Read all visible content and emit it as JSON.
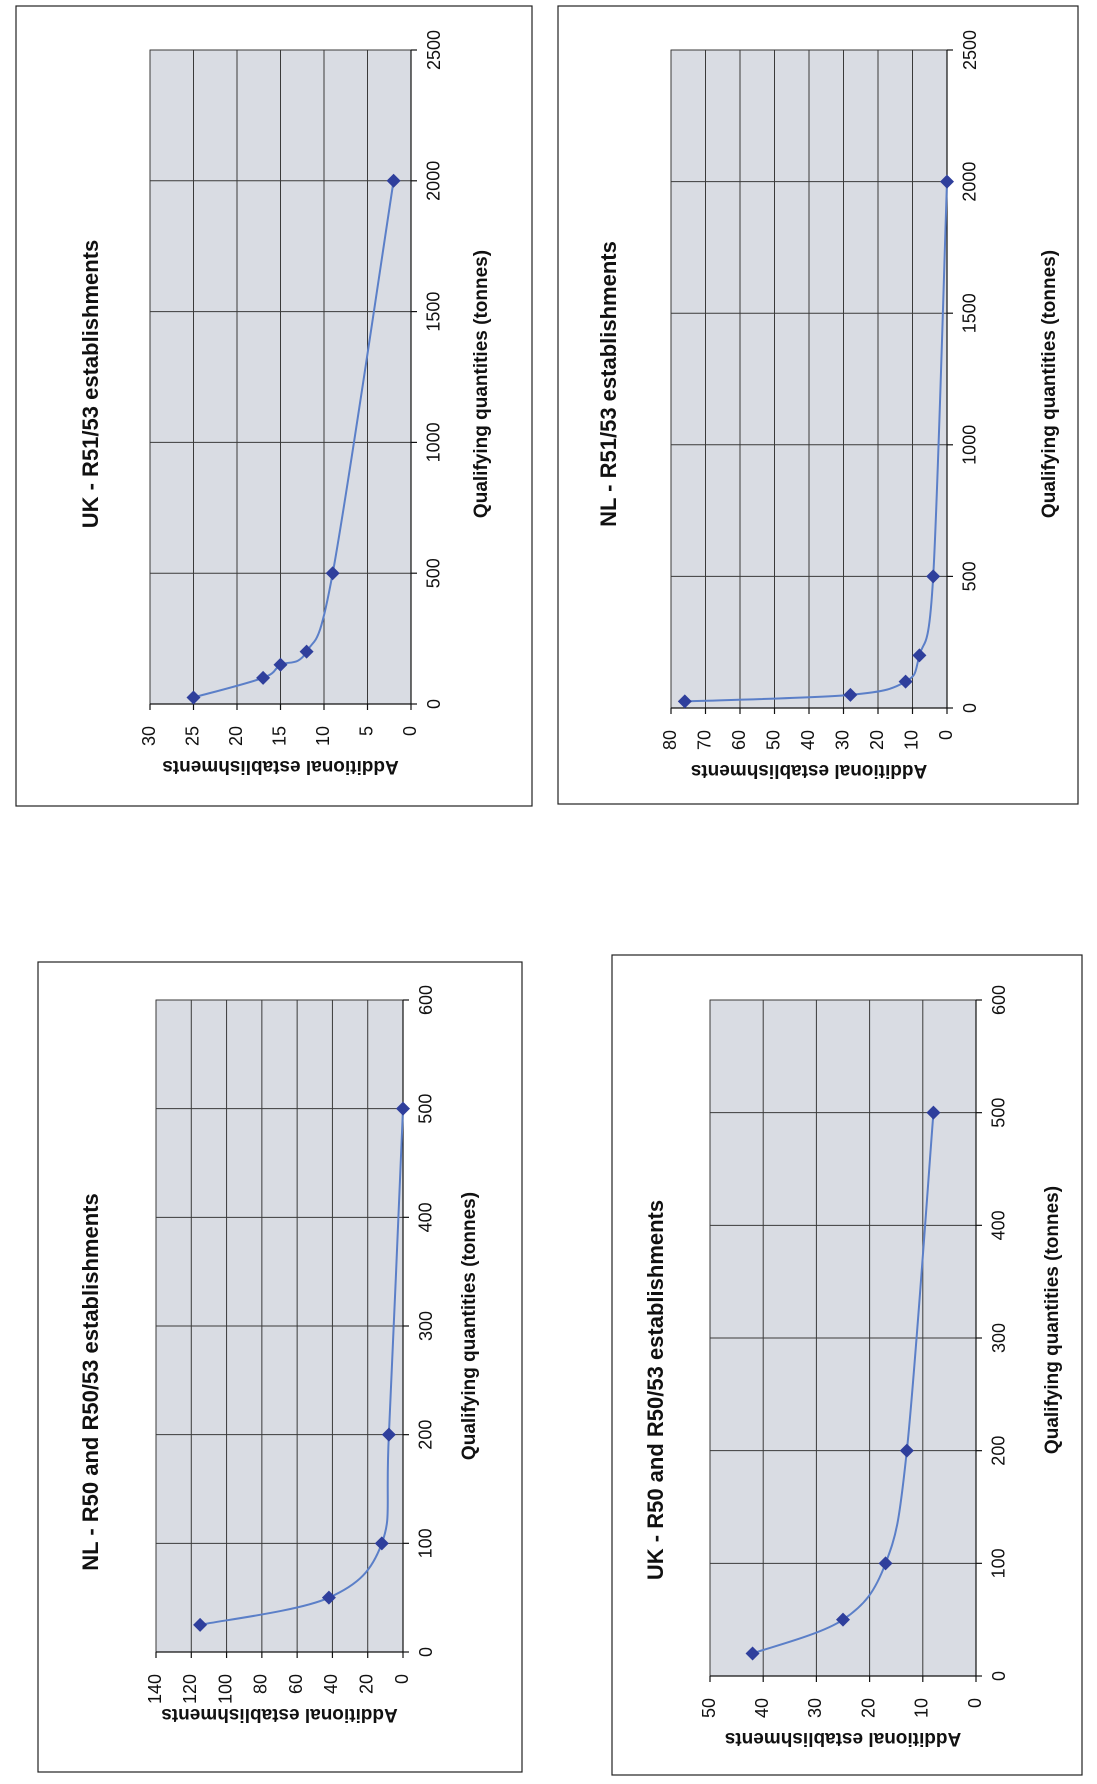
{
  "chart_data": [
    {
      "id": "nl-r50",
      "type": "line",
      "title": "NL - R50 and R50/53 establishments",
      "xlabel": "Qualifying quantities (tonnes)",
      "ylabel": "Additional establishments",
      "xlim": [
        0,
        600
      ],
      "ylim": [
        0,
        140
      ],
      "xticks": [
        0,
        100,
        200,
        300,
        400,
        500,
        600
      ],
      "yticks": [
        0,
        20,
        40,
        60,
        80,
        100,
        120,
        140
      ],
      "grid": true,
      "legend": "none",
      "orientation": "rotated 90 degrees counter-clockwise",
      "series": [
        {
          "x": [
            25,
            50,
            100,
            200,
            500
          ],
          "y": [
            115,
            42,
            12,
            8,
            0
          ]
        }
      ]
    },
    {
      "id": "nl-r51",
      "type": "line",
      "title": "NL - R51/53 establishments",
      "xlabel": "Qualifying quantities (tonnes)",
      "ylabel": "Additional establishments",
      "xlim": [
        0,
        2500
      ],
      "ylim": [
        0,
        80
      ],
      "xticks": [
        0,
        500,
        1000,
        1500,
        2000,
        2500
      ],
      "yticks": [
        0,
        10,
        20,
        30,
        40,
        50,
        60,
        70,
        80
      ],
      "grid": true,
      "legend": "none",
      "orientation": "rotated 90 degrees counter-clockwise",
      "series": [
        {
          "x": [
            25,
            50,
            100,
            200,
            500,
            2000
          ],
          "y": [
            76,
            28,
            12,
            8,
            4,
            0
          ]
        }
      ]
    },
    {
      "id": "uk-r50",
      "type": "line",
      "title": "UK - R50 and R50/53 establishments",
      "xlabel": "Qualifying quantities (tonnes)",
      "ylabel": "Additional establishments",
      "xlim": [
        0,
        600
      ],
      "ylim": [
        0,
        50
      ],
      "xticks": [
        0,
        100,
        200,
        300,
        400,
        500,
        600
      ],
      "yticks": [
        0,
        10,
        20,
        30,
        40,
        50
      ],
      "grid": true,
      "legend": "none",
      "orientation": "rotated 90 degrees counter-clockwise",
      "series": [
        {
          "x": [
            20,
            50,
            100,
            200,
            500
          ],
          "y": [
            42,
            25,
            17,
            13,
            8
          ]
        }
      ]
    },
    {
      "id": "uk-r51",
      "type": "line",
      "title": "UK - R51/53 establishments",
      "xlabel": "Qualifying quantities (tonnes)",
      "ylabel": "Additional establishments",
      "xlim": [
        0,
        2500
      ],
      "ylim": [
        0,
        30
      ],
      "xticks": [
        0,
        500,
        1000,
        1500,
        2000,
        2500
      ],
      "yticks": [
        0,
        5,
        10,
        15,
        20,
        25,
        30
      ],
      "grid": true,
      "legend": "none",
      "orientation": "rotated 90 degrees counter-clockwise",
      "series": [
        {
          "x": [
            25,
            100,
            150,
            200,
            500,
            2000
          ],
          "y": [
            25,
            17,
            15,
            12,
            9,
            2
          ]
        }
      ]
    }
  ],
  "colors": {
    "line": "#5b7fc8",
    "marker": "#2f3f9c",
    "plot_background": "#d9dce3",
    "grid": "#3a3a3a",
    "frame": "#222222"
  }
}
